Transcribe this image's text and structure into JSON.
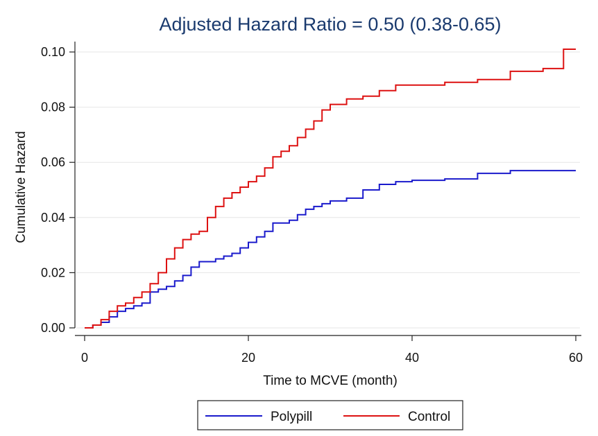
{
  "chart_data": {
    "type": "line",
    "title": "Adjusted Hazard Ratio = 0.50 (0.38-0.65)",
    "xlabel": "Time to MCVE (month)",
    "ylabel": "Cumulative Hazard",
    "xlim": [
      0,
      60
    ],
    "ylim": [
      0,
      0.1
    ],
    "xticks": [
      0,
      20,
      40,
      60
    ],
    "xtick_labels": [
      "0",
      "20",
      "40",
      "60"
    ],
    "yticks": [
      0,
      0.02,
      0.04,
      0.06,
      0.08,
      0.1
    ],
    "ytick_labels": [
      "0.00",
      "0.02",
      "0.04",
      "0.06",
      "0.08",
      "0.10"
    ],
    "grid": true,
    "legend_position": "bottom",
    "step": true,
    "series": [
      {
        "name": "Polypill",
        "color": "#1a1acc",
        "x": [
          0,
          1,
          2,
          3,
          4,
          5,
          6,
          7,
          8,
          9,
          10,
          11,
          12,
          13,
          14,
          15,
          16,
          17,
          18,
          19,
          20,
          21,
          22,
          23,
          24,
          25,
          26,
          27,
          28,
          29,
          30,
          32,
          34,
          36,
          38,
          40,
          44,
          48,
          52,
          56,
          60
        ],
        "y": [
          0,
          0.001,
          0.002,
          0.004,
          0.006,
          0.007,
          0.008,
          0.009,
          0.013,
          0.014,
          0.015,
          0.017,
          0.019,
          0.022,
          0.024,
          0.024,
          0.025,
          0.026,
          0.027,
          0.029,
          0.031,
          0.033,
          0.035,
          0.038,
          0.038,
          0.039,
          0.041,
          0.043,
          0.044,
          0.045,
          0.046,
          0.047,
          0.05,
          0.052,
          0.053,
          0.0535,
          0.054,
          0.056,
          0.057,
          0.057,
          0.057
        ]
      },
      {
        "name": "Control",
        "color": "#dd1111",
        "x": [
          0,
          1,
          2,
          3,
          4,
          5,
          6,
          7,
          8,
          9,
          10,
          11,
          12,
          13,
          14,
          15,
          16,
          17,
          18,
          19,
          20,
          21,
          22,
          23,
          24,
          25,
          26,
          27,
          28,
          29,
          30,
          32,
          34,
          36,
          38,
          40,
          44,
          48,
          52,
          56,
          58.5,
          60
        ],
        "y": [
          0,
          0.001,
          0.003,
          0.006,
          0.008,
          0.009,
          0.011,
          0.013,
          0.016,
          0.02,
          0.025,
          0.029,
          0.032,
          0.034,
          0.035,
          0.04,
          0.044,
          0.047,
          0.049,
          0.051,
          0.053,
          0.055,
          0.058,
          0.062,
          0.064,
          0.066,
          0.069,
          0.072,
          0.075,
          0.079,
          0.081,
          0.083,
          0.084,
          0.086,
          0.088,
          0.088,
          0.089,
          0.09,
          0.093,
          0.094,
          0.101,
          0.101
        ]
      }
    ]
  }
}
